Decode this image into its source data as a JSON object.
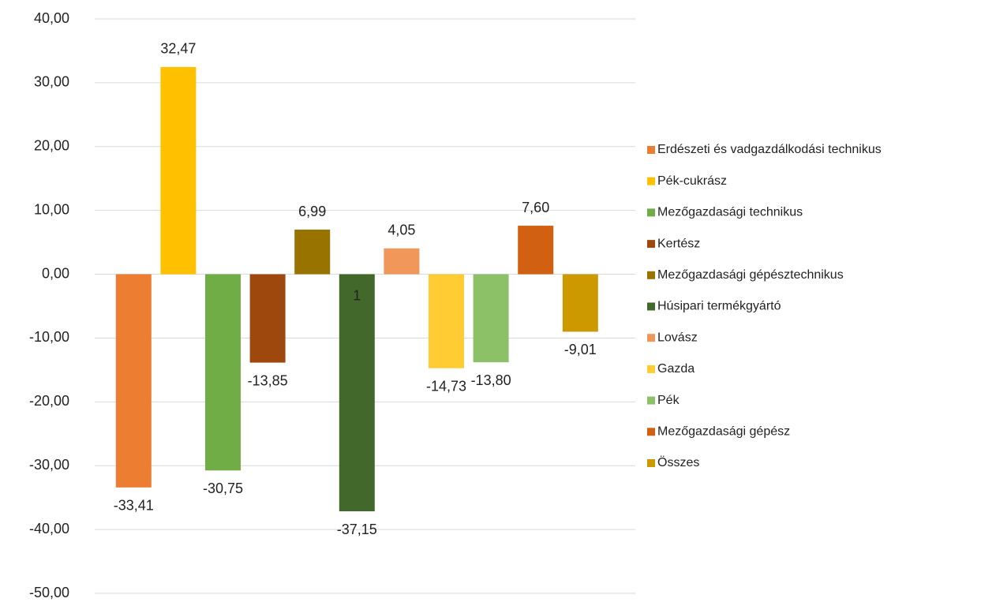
{
  "chart_data": {
    "type": "bar",
    "categories": [
      null
    ],
    "series": [
      {
        "name": "Erdészeti és vadgazdálkodási technikus",
        "color": "#ED7D31",
        "values": [
          -33.41
        ],
        "value_labels": [
          "-33,41"
        ]
      },
      {
        "name": "Pék-cukrász",
        "color": "#FFC000",
        "values": [
          32.47
        ],
        "value_labels": [
          "32,47"
        ]
      },
      {
        "name": "Mezőgazdasági technikus",
        "color": "#70AD47",
        "values": [
          -30.75
        ],
        "value_labels": [
          "-30,75"
        ]
      },
      {
        "name": "Kertész",
        "color": "#9E480E",
        "values": [
          -13.85
        ],
        "value_labels": [
          "-13,85"
        ]
      },
      {
        "name": "Mezőgazdasági gépésztechnikus",
        "color": "#997300",
        "values": [
          6.99
        ],
        "value_labels": [
          "6,99"
        ]
      },
      {
        "name": "Húsipari termékgyártó",
        "color": "#43682B",
        "values": [
          -37.15
        ],
        "value_labels": [
          "-37,15"
        ]
      },
      {
        "name": "Lovász",
        "color": "#F1975A",
        "values": [
          4.05
        ],
        "value_labels": [
          "4,05"
        ]
      },
      {
        "name": "Gazda",
        "color": "#FFCD33",
        "values": [
          -14.73
        ],
        "value_labels": [
          "-14,73"
        ]
      },
      {
        "name": "Pék",
        "color": "#8CC168",
        "values": [
          -13.8
        ],
        "value_labels": [
          "-13,80"
        ]
      },
      {
        "name": "Mezőgazdasági gépész",
        "color": "#D26012",
        "values": [
          7.6
        ],
        "value_labels": [
          "7,60"
        ]
      },
      {
        "name": "Összes",
        "color": "#CC9A00",
        "values": [
          -9.01
        ],
        "value_labels": [
          "-9,01"
        ]
      }
    ],
    "annotations": [
      "1"
    ],
    "ylim": [
      -50,
      40
    ],
    "yticks": [
      {
        "value": -50,
        "label": "-50,00"
      },
      {
        "value": -40,
        "label": "-40,00"
      },
      {
        "value": -30,
        "label": "-30,00"
      },
      {
        "value": -20,
        "label": "-20,00"
      },
      {
        "value": -10,
        "label": "-10,00"
      },
      {
        "value": 0,
        "label": "0,00"
      },
      {
        "value": 10,
        "label": "10,00"
      },
      {
        "value": 20,
        "label": "20,00"
      },
      {
        "value": 30,
        "label": "30,00"
      },
      {
        "value": 40,
        "label": "40,00"
      }
    ],
    "grid": true,
    "legend": "right"
  }
}
